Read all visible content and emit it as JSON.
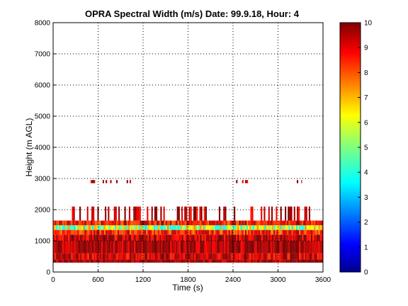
{
  "chart_data": {
    "type": "heatmap",
    "title": "OPRA Spectral Width (m/s)  Date: 99.9.18, Hour: 4",
    "xlabel": "Time (s)",
    "ylabel": "Height (m AGL)",
    "xlim": [
      0,
      3600
    ],
    "ylim": [
      0,
      8000
    ],
    "xticks": [
      "0",
      "600",
      "1200",
      "1800",
      "2400",
      "3000",
      "3600"
    ],
    "yticks": [
      "0",
      "1000",
      "2000",
      "3000",
      "4000",
      "5000",
      "6000",
      "7000",
      "8000"
    ],
    "grid": true,
    "colorbar": {
      "range": [
        0,
        10
      ],
      "ticks": [
        "0",
        "1",
        "2",
        "3",
        "4",
        "5",
        "6",
        "7",
        "8",
        "9",
        "10"
      ],
      "colormap": "jet"
    },
    "layers": [
      {
        "height_range": [
          300,
          400
        ],
        "time_range": [
          0,
          3600
        ],
        "value": 10
      },
      {
        "height_range": [
          400,
          600
        ],
        "time_range": [
          0,
          3600
        ],
        "value": 9.3
      },
      {
        "height_range": [
          600,
          1000
        ],
        "time_range": [
          0,
          3600
        ],
        "value": 9.8
      },
      {
        "height_range": [
          1000,
          1200
        ],
        "time_range": [
          0,
          3600
        ],
        "value": 9.4
      },
      {
        "height_range": [
          1200,
          1350
        ],
        "time_range": [
          0,
          3600
        ],
        "value": 8.5
      },
      {
        "height_range": [
          1350,
          1500
        ],
        "time_range": [
          0,
          3600
        ],
        "value": 5.5
      },
      {
        "height_range": [
          1500,
          1650
        ],
        "time_range": [
          0,
          3600
        ],
        "value": 8.8
      },
      {
        "height_range": [
          1650,
          2100
        ],
        "time_range": [
          250,
          3550
        ],
        "value": 9.5,
        "sparse": true
      },
      {
        "height_range": [
          2850,
          2950
        ],
        "time_range": [
          480,
          1100
        ],
        "value": 9.9,
        "sparse": true
      },
      {
        "height_range": [
          2850,
          2950
        ],
        "time_range": [
          2400,
          2600
        ],
        "value": 9.9,
        "sparse": true
      },
      {
        "height_range": [
          2850,
          2950
        ],
        "time_range": [
          3250,
          3320
        ],
        "value": 9.9,
        "sparse": true
      }
    ]
  }
}
